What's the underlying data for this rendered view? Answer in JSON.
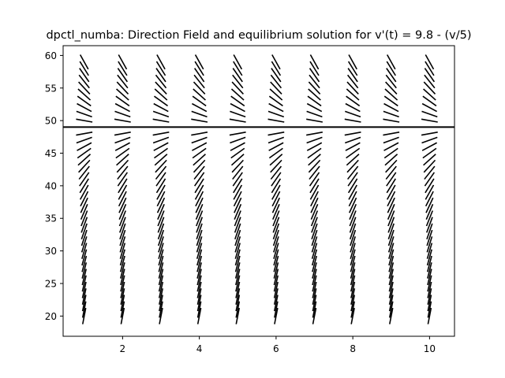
{
  "chart_data": {
    "type": "line",
    "title": "dpctl_numba: Direction Field and equilibrium solution for v'(t) = 9.8 - (v/5)",
    "xlabel": "",
    "ylabel": "",
    "xlim": [
      0.45,
      10.65
    ],
    "ylim": [
      16.9,
      61.5
    ],
    "xticks": [
      2,
      4,
      6,
      8,
      10
    ],
    "yticks": [
      20,
      25,
      30,
      35,
      40,
      45,
      50,
      55,
      60
    ],
    "grid": false,
    "direction_field": {
      "t_values": [
        1,
        2,
        3,
        4,
        5,
        6,
        7,
        8,
        9,
        10
      ],
      "v_start": 20,
      "v_end": 59,
      "v_step": 1,
      "slope_a": 9.8,
      "slope_b": 0.2,
      "color": "#000000"
    },
    "equilibrium": {
      "v": 49,
      "color": "#000000"
    },
    "colors": {
      "background": "#ffffff",
      "axes": "#000000"
    }
  }
}
